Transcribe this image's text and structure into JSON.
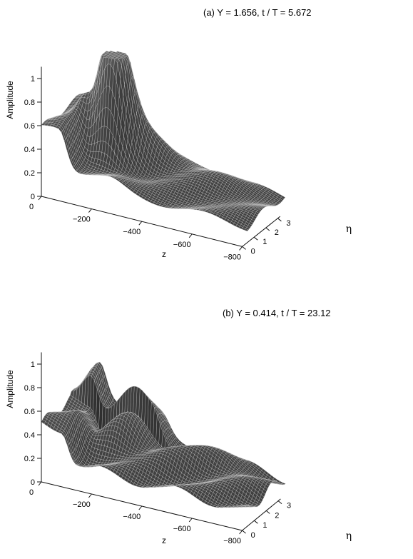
{
  "figure": {
    "colors": {
      "surface_dark": "#2a2a2a",
      "surface_light": "#6b6b6b",
      "mesh_line": "#d7d7d7",
      "axis": "#111111"
    }
  },
  "chart_data": [
    {
      "panel_id": "a",
      "type": "surface",
      "title": "(a)   Y = 1.656,   t / T = 5.672",
      "xlabel": "z",
      "ylabel": "η",
      "zlabel": "Amplitude",
      "x_ticks": [
        "0",
        "−200",
        "−400",
        "−600",
        "−800"
      ],
      "y_ticks": [
        "0",
        "1",
        "2",
        "3"
      ],
      "z_ticks": [
        "0",
        "0.2",
        "0.4",
        "0.6",
        "0.8",
        "1"
      ],
      "x_range": [
        0,
        -820
      ],
      "y_range": [
        0,
        3.2
      ],
      "z_range": [
        0,
        1.1
      ],
      "grid": false,
      "surface": {
        "nx": 72,
        "ny": 32,
        "base_level": 0.23,
        "slope": -0.06,
        "components": [
          {
            "kind": "ridge",
            "z_start": -70,
            "z_end": 0,
            "amp": 0.32,
            "eta_min": 0.0,
            "eta_max": 3.2,
            "width": 28
          },
          {
            "kind": "ridge",
            "z_start": -260,
            "z_end": -70,
            "amp": 0.08,
            "eta_min": 0.0,
            "eta_max": 3.2,
            "width": 55
          },
          {
            "kind": "peak",
            "z": -170,
            "eta": 1.95,
            "amp": 0.68,
            "sz": 55,
            "se": 0.4
          },
          {
            "kind": "peak",
            "z": -230,
            "eta": 2.25,
            "amp": 0.45,
            "sz": 45,
            "se": 0.36
          },
          {
            "kind": "peak",
            "z": -210,
            "eta": 1.65,
            "amp": 0.5,
            "sz": 40,
            "se": 0.34
          },
          {
            "kind": "peak",
            "z": -320,
            "eta": 2.55,
            "amp": 0.2,
            "sz": 70,
            "se": 0.5
          },
          {
            "kind": "peak",
            "z": -520,
            "eta": 2.65,
            "amp": 0.1,
            "sz": 110,
            "se": 0.65
          },
          {
            "kind": "peak",
            "z": -640,
            "eta": 1.7,
            "amp": 0.06,
            "sz": 160,
            "se": 0.8
          },
          {
            "kind": "wave",
            "amp": 0.03,
            "kz": 0.018,
            "keta": 2.4,
            "phase": 0.7
          }
        ]
      }
    },
    {
      "panel_id": "b",
      "type": "surface",
      "title": "(b)   Y = 0.414,   t / T = 23.12",
      "xlabel": "z",
      "ylabel": "η",
      "zlabel": "Amplitude",
      "x_ticks": [
        "0",
        "−200",
        "−400",
        "−600",
        "−800"
      ],
      "y_ticks": [
        "0",
        "1",
        "2",
        "3"
      ],
      "z_ticks": [
        "0",
        "0.2",
        "0.4",
        "0.6",
        "0.8",
        "1"
      ],
      "x_range": [
        0,
        -820
      ],
      "y_range": [
        0,
        3.2
      ],
      "z_range": [
        0,
        1.1
      ],
      "grid": false,
      "surface": {
        "nx": 72,
        "ny": 32,
        "base_level": 0.22,
        "slope": -0.04,
        "components": [
          {
            "kind": "ridge",
            "z_start": -80,
            "z_end": 0,
            "amp": 0.28,
            "eta_min": 0.0,
            "eta_max": 3.2,
            "width": 26
          },
          {
            "kind": "ridge",
            "z_start": -320,
            "z_end": -80,
            "amp": 0.25,
            "eta_min": 2.5,
            "eta_max": 3.2,
            "width": 35
          },
          {
            "kind": "peak",
            "z": -250,
            "eta": 2.35,
            "amp": 0.22,
            "sz": 60,
            "se": 0.5
          },
          {
            "kind": "peak",
            "z": -220,
            "eta": 1.6,
            "amp": 0.16,
            "sz": 65,
            "se": 0.45
          },
          {
            "kind": "peak",
            "z": -420,
            "eta": 1.7,
            "amp": 0.12,
            "sz": 90,
            "se": 0.55
          },
          {
            "kind": "peak",
            "z": -520,
            "eta": 2.55,
            "amp": 0.11,
            "sz": 90,
            "se": 0.55
          },
          {
            "kind": "peak",
            "z": -670,
            "eta": 2.05,
            "amp": 0.09,
            "sz": 95,
            "se": 0.62
          },
          {
            "kind": "wave",
            "amp": 0.045,
            "kz": 0.021,
            "keta": 2.9,
            "phase": 0.2
          }
        ]
      }
    }
  ]
}
